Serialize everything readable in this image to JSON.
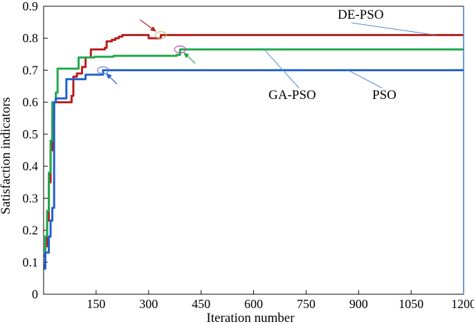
{
  "chart_data": {
    "type": "line",
    "title": "",
    "xlabel": "Iteration number",
    "ylabel": "Satisfaction indicators",
    "xlim": [
      0,
      1200
    ],
    "ylim": [
      0,
      0.9
    ],
    "xticks": [
      150,
      300,
      450,
      600,
      750,
      900,
      1050,
      1200
    ],
    "xtick_labels": [
      "150",
      "300",
      "450",
      "600",
      "750",
      "900",
      "1050",
      "1200"
    ],
    "yticks": [
      0,
      0.1,
      0.2,
      0.3,
      0.4,
      0.5,
      0.6,
      0.7,
      0.8,
      0.9
    ],
    "ytick_labels": [
      "0",
      "0.1",
      "0.2",
      "0.3",
      "0.4",
      "0.5",
      "0.6",
      "0.7",
      "0.8",
      "0.9"
    ],
    "grid": false,
    "series": [
      {
        "name": "DE-PSO",
        "color": "#b81c1c",
        "convergence_iteration": 335,
        "x": [
          0,
          5,
          10,
          15,
          20,
          25,
          30,
          60,
          80,
          85,
          95,
          110,
          120,
          135,
          160,
          175,
          180,
          195,
          205,
          215,
          225,
          265,
          300,
          335,
          1200
        ],
        "y": [
          0.09,
          0.15,
          0.23,
          0.35,
          0.45,
          0.55,
          0.6,
          0.6,
          0.62,
          0.68,
          0.69,
          0.71,
          0.74,
          0.765,
          0.765,
          0.77,
          0.79,
          0.795,
          0.8,
          0.805,
          0.81,
          0.81,
          0.8,
          0.81,
          0.81
        ]
      },
      {
        "name": "GA-PSO",
        "color": "#22a84a",
        "convergence_iteration": 390,
        "x": [
          0,
          5,
          10,
          15,
          20,
          25,
          35,
          40,
          90,
          100,
          140,
          145,
          200,
          230,
          380,
          390,
          1200
        ],
        "y": [
          0.12,
          0.18,
          0.26,
          0.38,
          0.48,
          0.6,
          0.63,
          0.705,
          0.705,
          0.74,
          0.74,
          0.742,
          0.745,
          0.745,
          0.748,
          0.765,
          0.765
        ]
      },
      {
        "name": "PSO",
        "color": "#1f5fd1",
        "convergence_iteration": 170,
        "x": [
          0,
          5,
          15,
          20,
          25,
          30,
          35,
          40,
          55,
          65,
          120,
          130,
          160,
          170,
          1200
        ],
        "y": [
          0.08,
          0.13,
          0.18,
          0.23,
          0.27,
          0.6,
          0.612,
          0.612,
          0.612,
          0.672,
          0.686,
          0.686,
          0.686,
          0.7,
          0.7
        ]
      }
    ],
    "annotations": [
      {
        "series": "DE-PSO",
        "label": "DE-PSO",
        "marker_at": [
          335,
          0.81
        ]
      },
      {
        "series": "GA-PSO",
        "label": "GA-PSO",
        "marker_at": [
          390,
          0.765
        ]
      },
      {
        "series": "PSO",
        "label": "PSO",
        "marker_at": [
          170,
          0.7
        ]
      }
    ]
  }
}
